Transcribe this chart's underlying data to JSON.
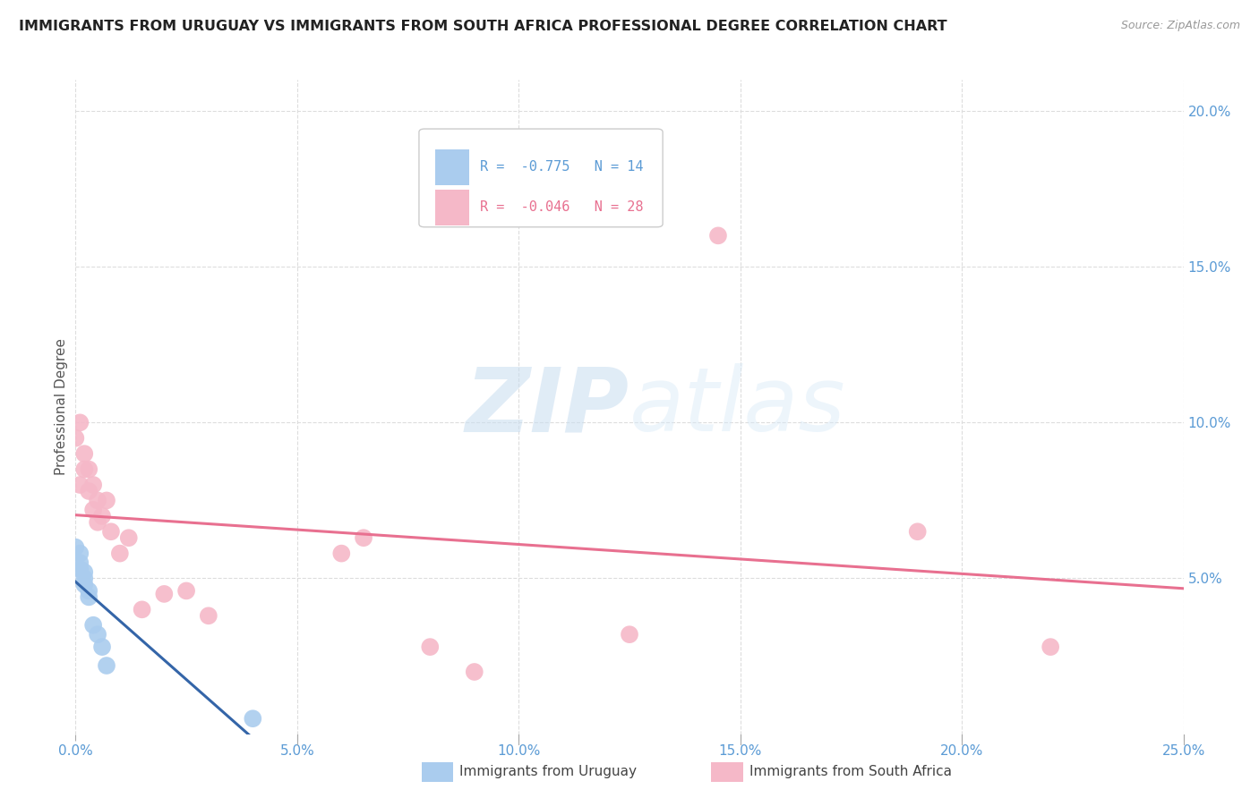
{
  "title": "IMMIGRANTS FROM URUGUAY VS IMMIGRANTS FROM SOUTH AFRICA PROFESSIONAL DEGREE CORRELATION CHART",
  "source": "Source: ZipAtlas.com",
  "tick_color": "#5b9bd5",
  "ylabel": "Professional Degree",
  "xlim": [
    0.0,
    0.25
  ],
  "ylim": [
    0.0,
    0.21
  ],
  "xticks": [
    0.0,
    0.05,
    0.1,
    0.15,
    0.2,
    0.25
  ],
  "xticklabels": [
    "0.0%",
    "5.0%",
    "10.0%",
    "15.0%",
    "20.0%",
    "25.0%"
  ],
  "yticks": [
    0.05,
    0.1,
    0.15,
    0.2
  ],
  "yticklabels": [
    "5.0%",
    "10.0%",
    "15.0%",
    "20.0%"
  ],
  "legend_r1": "-0.775",
  "legend_n1": "14",
  "legend_r2": "-0.046",
  "legend_n2": "28",
  "uruguay_color": "#aaccee",
  "southafrica_color": "#f5b8c8",
  "line_uruguay_color": "#3465a8",
  "line_southafrica_color": "#e87090",
  "watermark_zip": "ZIP",
  "watermark_atlas": "atlas",
  "uruguay_x": [
    0.0,
    0.001,
    0.001,
    0.001,
    0.002,
    0.002,
    0.002,
    0.003,
    0.003,
    0.004,
    0.005,
    0.006,
    0.007,
    0.04
  ],
  "uruguay_y": [
    0.06,
    0.058,
    0.055,
    0.053,
    0.052,
    0.05,
    0.048,
    0.046,
    0.044,
    0.035,
    0.032,
    0.028,
    0.022,
    0.005
  ],
  "southafrica_x": [
    0.0,
    0.001,
    0.001,
    0.002,
    0.002,
    0.003,
    0.003,
    0.004,
    0.004,
    0.005,
    0.005,
    0.006,
    0.007,
    0.008,
    0.01,
    0.012,
    0.015,
    0.02,
    0.025,
    0.03,
    0.06,
    0.065,
    0.08,
    0.09,
    0.125,
    0.145,
    0.19,
    0.22
  ],
  "southafrica_y": [
    0.095,
    0.1,
    0.08,
    0.09,
    0.085,
    0.085,
    0.078,
    0.08,
    0.072,
    0.075,
    0.068,
    0.07,
    0.075,
    0.065,
    0.058,
    0.063,
    0.04,
    0.045,
    0.046,
    0.038,
    0.058,
    0.063,
    0.028,
    0.02,
    0.032,
    0.16,
    0.065,
    0.028
  ],
  "background_color": "#ffffff",
  "grid_color": "#dddddd"
}
